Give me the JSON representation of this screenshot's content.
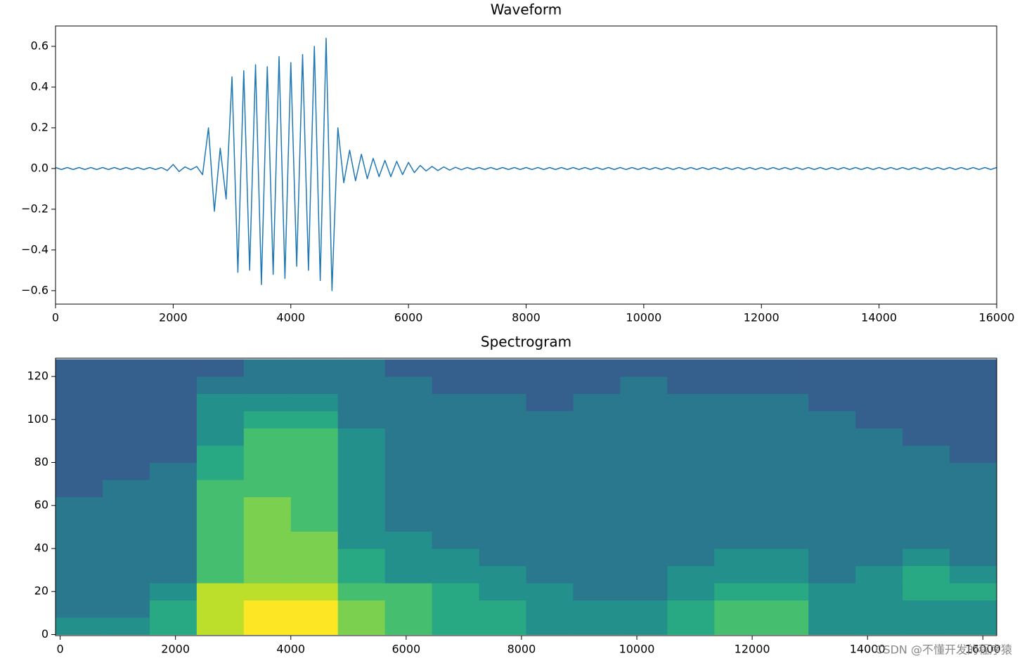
{
  "chart_data": [
    {
      "type": "line",
      "title": "Waveform",
      "color": "#1f77b4",
      "x": [
        0,
        100,
        200,
        300,
        400,
        500,
        600,
        700,
        800,
        900,
        1000,
        1100,
        1200,
        1300,
        1400,
        1500,
        1600,
        1700,
        1800,
        1900,
        2000,
        2100,
        2200,
        2300,
        2400,
        2500,
        2600,
        2700,
        2800,
        2900,
        3000,
        3100,
        3200,
        3300,
        3400,
        3500,
        3600,
        3700,
        3800,
        3900,
        4000,
        4100,
        4200,
        4300,
        4400,
        4500,
        4600,
        4700,
        4800,
        4900,
        5000,
        5100,
        5200,
        5300,
        5400,
        5500,
        5600,
        5700,
        5800,
        5900,
        6000,
        6100,
        6200,
        6300,
        6400,
        6500,
        6600,
        6700,
        6800,
        6900,
        7000,
        7100,
        7200,
        7300,
        7400,
        7500,
        7600,
        7700,
        7800,
        7900,
        8000,
        8100,
        8200,
        8300,
        8400,
        8500,
        8600,
        8700,
        8800,
        8900,
        9000,
        9100,
        9200,
        9300,
        9400,
        9500,
        9600,
        9700,
        9800,
        9900,
        10000,
        10100,
        10200,
        10300,
        10400,
        10500,
        10600,
        10700,
        10800,
        10900,
        11000,
        11100,
        11200,
        11300,
        11400,
        11500,
        11600,
        11700,
        11800,
        11900,
        12000,
        12100,
        12200,
        12300,
        12400,
        12500,
        12600,
        12700,
        12800,
        12900,
        13000,
        13100,
        13200,
        13300,
        13400,
        13500,
        13600,
        13700,
        13800,
        13900,
        14000,
        14100,
        14200,
        14300,
        14400,
        14500,
        14600,
        14700,
        14800,
        14900,
        15000,
        15100,
        15200,
        15300,
        15400,
        15500,
        15600,
        15700,
        15800,
        15900,
        16000
      ],
      "values": [
        0.005,
        -0.005,
        0.005,
        -0.005,
        0.005,
        -0.005,
        0.005,
        -0.005,
        0.005,
        -0.005,
        0.005,
        -0.005,
        0.005,
        -0.005,
        0.005,
        -0.005,
        0.005,
        -0.005,
        0.005,
        -0.01,
        0.02,
        -0.015,
        0.008,
        -0.006,
        0.01,
        -0.03,
        0.2,
        -0.21,
        0.1,
        -0.15,
        0.45,
        -0.51,
        0.48,
        -0.5,
        0.51,
        -0.57,
        0.5,
        -0.52,
        0.55,
        -0.54,
        0.52,
        -0.48,
        0.56,
        -0.5,
        0.6,
        -0.55,
        0.64,
        -0.6,
        0.2,
        -0.07,
        0.09,
        -0.06,
        0.07,
        -0.05,
        0.05,
        -0.04,
        0.04,
        -0.04,
        0.035,
        -0.03,
        0.03,
        -0.02,
        0.015,
        -0.012,
        0.01,
        -0.01,
        0.008,
        -0.008,
        0.006,
        -0.006,
        0.005,
        -0.005,
        0.005,
        -0.005,
        0.005,
        -0.005,
        0.005,
        -0.005,
        0.005,
        -0.005,
        0.005,
        -0.005,
        0.005,
        -0.005,
        0.005,
        -0.005,
        0.005,
        -0.005,
        0.005,
        -0.005,
        0.005,
        -0.005,
        0.005,
        -0.005,
        0.005,
        -0.005,
        0.005,
        -0.005,
        0.005,
        -0.005,
        0.005,
        -0.005,
        0.005,
        -0.005,
        0.005,
        -0.005,
        0.005,
        -0.005,
        0.005,
        -0.005,
        0.005,
        -0.005,
        0.005,
        -0.005,
        0.005,
        -0.005,
        0.005,
        -0.005,
        0.005,
        -0.005,
        0.005,
        -0.005,
        0.005,
        -0.005,
        0.005,
        -0.005,
        0.005,
        -0.005,
        0.005,
        -0.005,
        0.005,
        -0.005,
        0.005,
        -0.005,
        0.005,
        -0.005,
        0.005,
        -0.005,
        0.005,
        -0.005,
        0.005,
        -0.005,
        0.005,
        -0.005,
        0.005,
        -0.005,
        0.005,
        -0.005,
        0.005,
        -0.005,
        0.005,
        -0.005,
        0.005,
        -0.005,
        0.005,
        -0.005,
        0.005,
        -0.005,
        0.005,
        -0.005,
        0.005
      ],
      "xlim": [
        0,
        16000
      ],
      "xticks": [
        0,
        2000,
        4000,
        6000,
        8000,
        10000,
        12000,
        14000,
        16000
      ],
      "ylim": [
        -0.666,
        0.7
      ],
      "yticks": [
        {
          "value": -0.6,
          "label": "−0.6"
        },
        {
          "value": -0.4,
          "label": "−0.4"
        },
        {
          "value": -0.2,
          "label": "−0.2"
        },
        {
          "value": 0,
          "label": "0.0"
        },
        0.2,
        0.4,
        0.6
      ],
      "grid": false
    },
    {
      "type": "heatmap",
      "title": "Spectrogram",
      "colormap": "viridis",
      "zlim": [
        0,
        10
      ],
      "x_edges": [
        -80,
        736,
        1552,
        2368,
        3184,
        4000,
        4816,
        5632,
        6448,
        7264,
        8080,
        8896,
        9712,
        10528,
        11344,
        12160,
        12976,
        13792,
        14608,
        15424,
        16240
      ],
      "y_edges": [
        0,
        8,
        16,
        24,
        32,
        40,
        48,
        56,
        64,
        72,
        80,
        88,
        96,
        104,
        112,
        120,
        128
      ],
      "z": [
        [
          5,
          5,
          6,
          9,
          10,
          10,
          8,
          7,
          6,
          6,
          5,
          5,
          5,
          6,
          7,
          7,
          5,
          5,
          5,
          5
        ],
        [
          4,
          4,
          6,
          9,
          10,
          10,
          8,
          7,
          6,
          6,
          5,
          5,
          5,
          6,
          7,
          7,
          5,
          5,
          5,
          5
        ],
        [
          4,
          4,
          5,
          9,
          9,
          9,
          7,
          7,
          6,
          5,
          5,
          4,
          4,
          5,
          6,
          6,
          5,
          5,
          6,
          6
        ],
        [
          4,
          4,
          4,
          7,
          8,
          8,
          6,
          5,
          5,
          5,
          4,
          4,
          4,
          5,
          5,
          5,
          4,
          5,
          6,
          5
        ],
        [
          4,
          4,
          4,
          7,
          8,
          8,
          6,
          5,
          5,
          4,
          4,
          4,
          4,
          4,
          5,
          5,
          4,
          4,
          5,
          4
        ],
        [
          4,
          4,
          4,
          7,
          8,
          8,
          5,
          5,
          4,
          4,
          4,
          4,
          4,
          4,
          4,
          4,
          4,
          4,
          4,
          4
        ],
        [
          4,
          4,
          4,
          7,
          8,
          7,
          5,
          4,
          4,
          4,
          4,
          4,
          4,
          4,
          4,
          4,
          4,
          4,
          4,
          4
        ],
        [
          4,
          4,
          4,
          7,
          8,
          7,
          5,
          4,
          4,
          4,
          4,
          4,
          4,
          4,
          4,
          4,
          4,
          4,
          4,
          4
        ],
        [
          3,
          4,
          4,
          7,
          7,
          7,
          5,
          4,
          4,
          4,
          4,
          4,
          4,
          4,
          4,
          4,
          4,
          4,
          4,
          4
        ],
        [
          3,
          3,
          4,
          6,
          7,
          7,
          5,
          4,
          4,
          4,
          4,
          4,
          4,
          4,
          4,
          4,
          4,
          4,
          4,
          4
        ],
        [
          3,
          3,
          3,
          6,
          7,
          7,
          5,
          4,
          4,
          4,
          4,
          4,
          4,
          4,
          4,
          4,
          4,
          4,
          4,
          3
        ],
        [
          3,
          3,
          3,
          5,
          7,
          7,
          5,
          4,
          4,
          4,
          4,
          4,
          4,
          4,
          4,
          4,
          4,
          4,
          3,
          3
        ],
        [
          3,
          3,
          3,
          5,
          6,
          6,
          4,
          4,
          4,
          4,
          4,
          4,
          4,
          4,
          4,
          4,
          4,
          3,
          3,
          3
        ],
        [
          3,
          3,
          3,
          5,
          5,
          5,
          4,
          4,
          4,
          4,
          3,
          4,
          4,
          4,
          4,
          4,
          3,
          3,
          3,
          3
        ],
        [
          3,
          3,
          3,
          4,
          4,
          4,
          4,
          4,
          3,
          3,
          3,
          3,
          4,
          3,
          3,
          3,
          3,
          3,
          3,
          3
        ],
        [
          3,
          3,
          3,
          3,
          4,
          4,
          4,
          3,
          3,
          3,
          3,
          3,
          3,
          3,
          3,
          3,
          3,
          3,
          3,
          3
        ]
      ],
      "xlim": [
        -80,
        16240
      ],
      "xticks": [
        0,
        2000,
        4000,
        6000,
        8000,
        10000,
        12000,
        14000,
        16000
      ],
      "ylim": [
        -0.5,
        128.5
      ],
      "yticks": [
        0,
        20,
        40,
        60,
        80,
        100,
        120
      ],
      "grid": false
    }
  ],
  "watermark": "CSDN @不懂开发的程序猿"
}
